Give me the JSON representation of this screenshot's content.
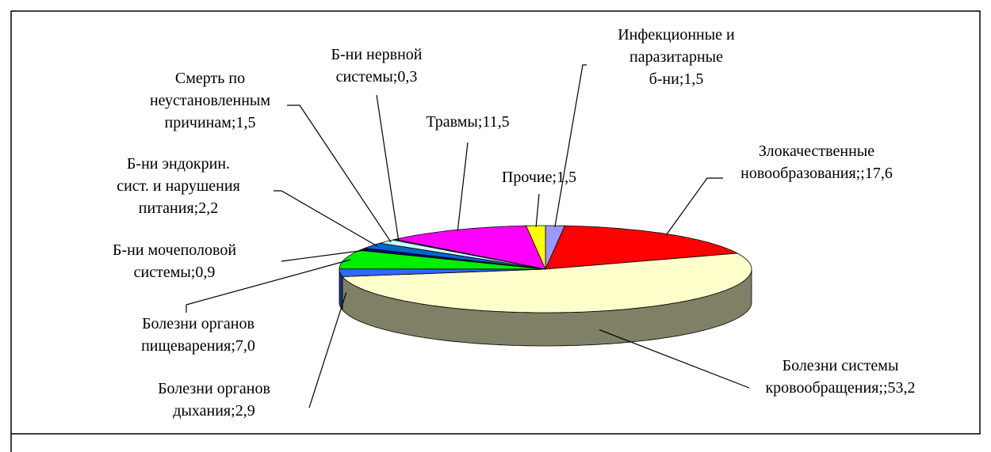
{
  "chart_data": {
    "type": "pie3d",
    "categories": [
      "Инфекционные и\nпаразитарные\nб-ни",
      "Злокачественные\nновообразования;",
      "Болезни системы\nкровообращения;",
      "Болезни органов\nдыхания",
      "Болезни органов\nпищеварения",
      "Б-ни мочеполовой\nсистемы",
      "Б-ни эндокрин.\nсист. и нарушения\nпитания",
      "Смерть по\nнеустановленным\nпричинам",
      "Б-ни нервной\nсистемы",
      "Травмы",
      "Прочие"
    ],
    "values": [
      1.5,
      17.6,
      53.2,
      2.9,
      7.0,
      0.9,
      2.2,
      1.5,
      0.3,
      11.5,
      1.5
    ],
    "value_labels": [
      "1,5",
      "17,6",
      "53,2",
      "2,9",
      "7,0",
      "0,9",
      "2,2",
      "1,5",
      "0,3",
      "11,5",
      "1,5"
    ],
    "label_separator": "; ",
    "colors": [
      "#9999ff",
      "#ff0000",
      "#ffffcc",
      "#3366ff",
      "#00ee00",
      "#000080",
      "#0066cc",
      "#ccffff",
      "#666699",
      "#ff00ff",
      "#ffff00"
    ]
  }
}
